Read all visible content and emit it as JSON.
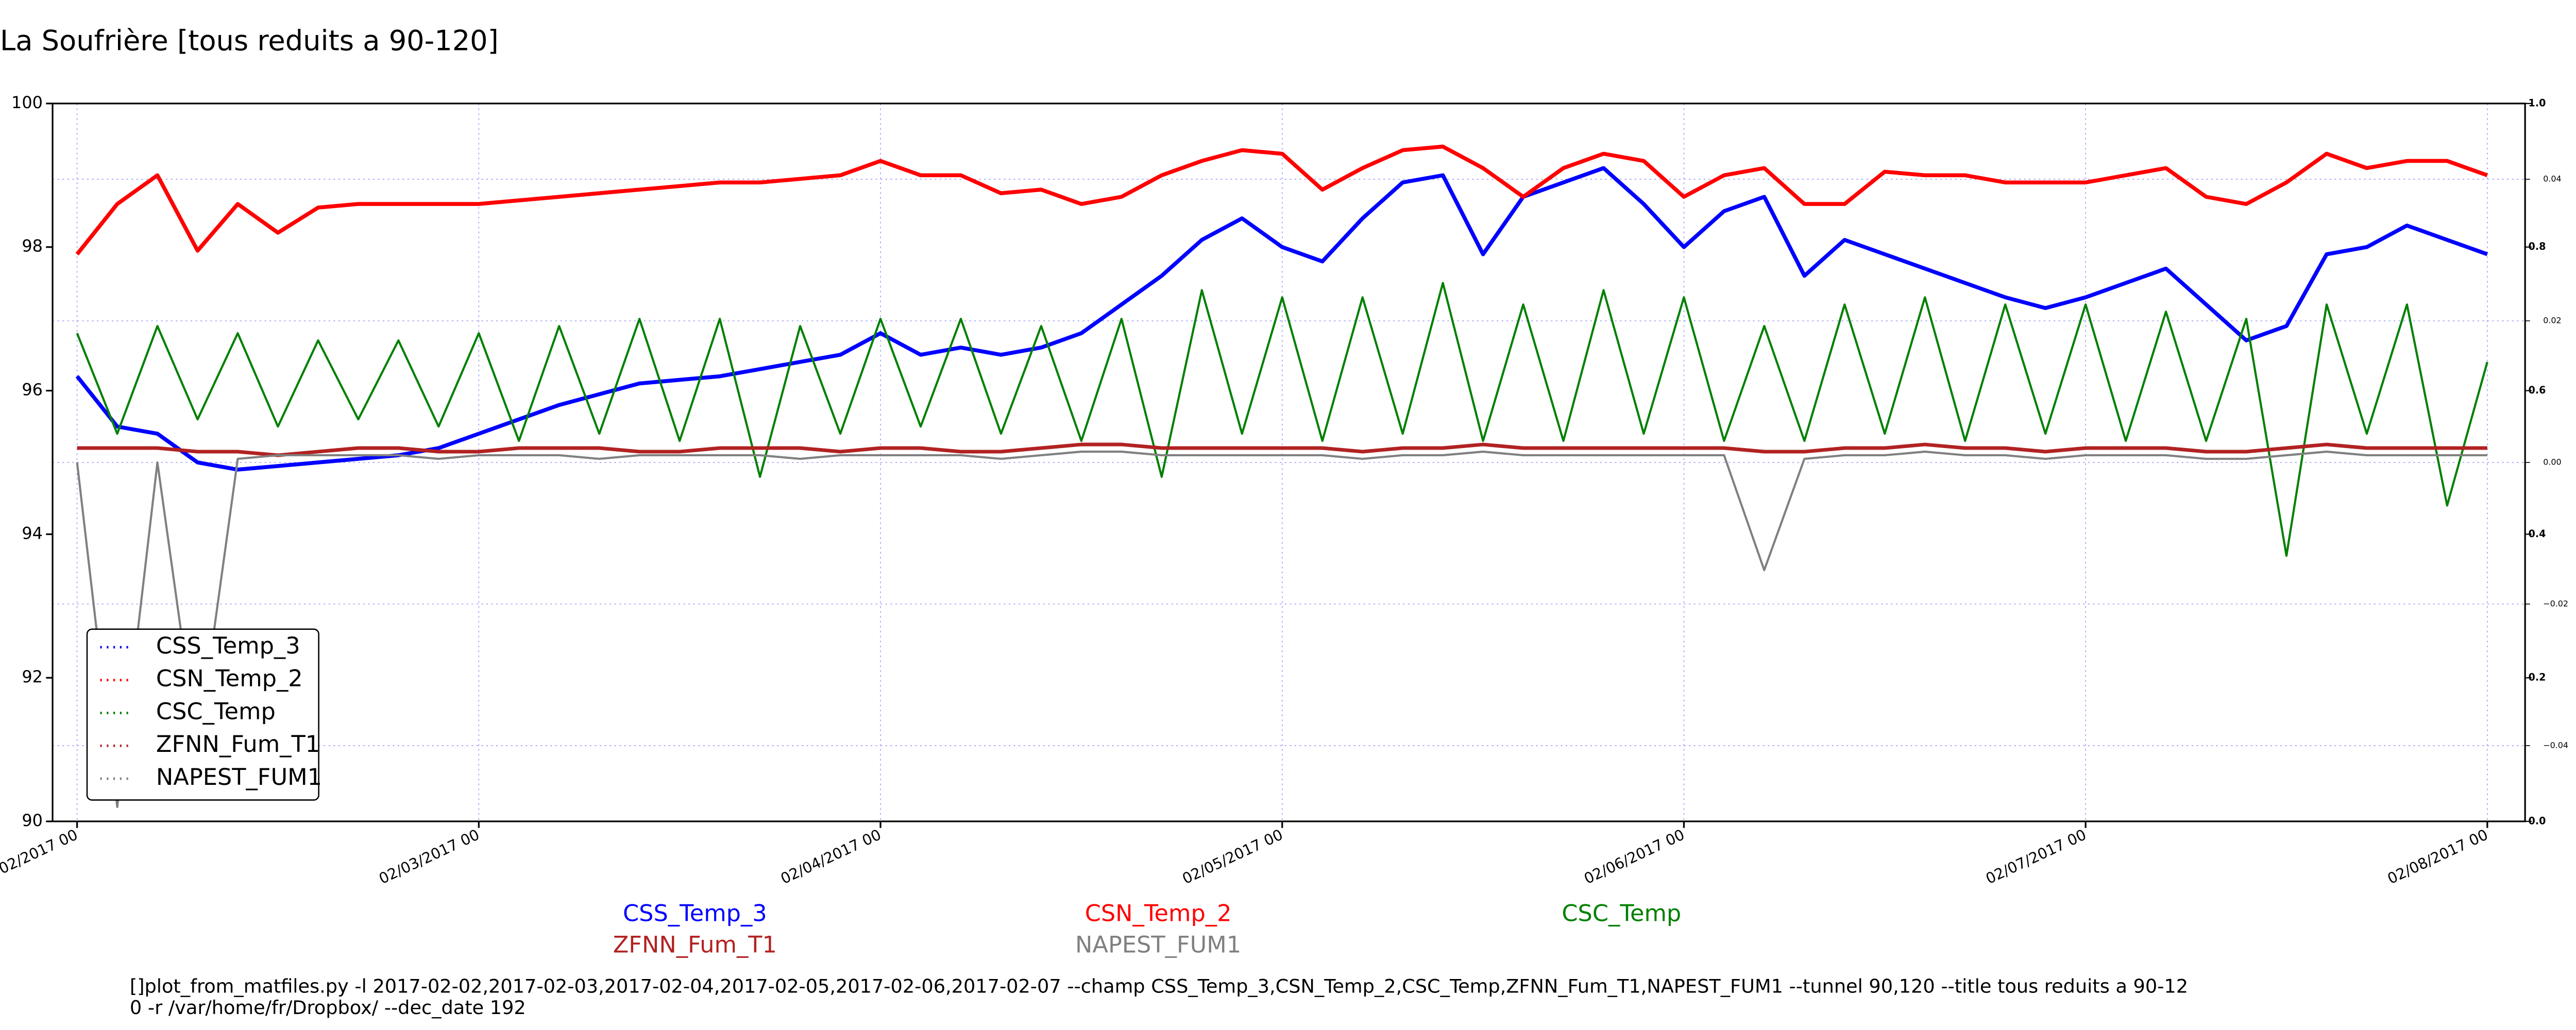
{
  "chart_data": {
    "type": "line",
    "title": "La Soufrière [tous reduits a 90-120]",
    "x": [
      2,
      2.1,
      2.2,
      2.3,
      2.4,
      2.5,
      2.6,
      2.7,
      2.8,
      2.9,
      3,
      3.1,
      3.2,
      3.3,
      3.4,
      3.5,
      3.6,
      3.7,
      3.8,
      3.9,
      4,
      4.1,
      4.2,
      4.3,
      4.4,
      4.5,
      4.6,
      4.7,
      4.8,
      4.9,
      5,
      5.1,
      5.2,
      5.3,
      5.4,
      5.5,
      5.6,
      5.7,
      5.8,
      5.9,
      6,
      6.1,
      6.2,
      6.3,
      6.4,
      6.5,
      6.6,
      6.7,
      6.8,
      6.9,
      7,
      7.1,
      7.2,
      7.3,
      7.4,
      7.5,
      7.6,
      7.7,
      7.8,
      7.9,
      8
    ],
    "xlim": [
      1.939,
      8.094
    ],
    "xticks": [
      {
        "value": 2,
        "label": "02/02/2017 00"
      },
      {
        "value": 3,
        "label": "02/03/2017 00"
      },
      {
        "value": 4,
        "label": "02/04/2017 00"
      },
      {
        "value": 5,
        "label": "02/05/2017 00"
      },
      {
        "value": 6,
        "label": "02/06/2017 00"
      },
      {
        "value": 7,
        "label": "02/07/2017 00"
      },
      {
        "value": 8,
        "label": "02/08/2017 00"
      }
    ],
    "ylim": [
      90,
      100
    ],
    "yticks": [
      90,
      92,
      94,
      96,
      98,
      100
    ],
    "y2lim": [
      0,
      1
    ],
    "y2ticks": [
      {
        "value": 0,
        "label": "0.0"
      },
      0.2,
      0.4,
      0.6,
      0.8,
      {
        "value": 1,
        "label": "1.0"
      }
    ],
    "y3lim": [
      -0.0507,
      0.0507
    ],
    "y3ticks": [
      {
        "value": -0.04,
        "label": "−0.04"
      },
      {
        "value": -0.02,
        "label": "−0.02"
      },
      {
        "value": 0,
        "label": "0.00"
      },
      0.02,
      0.04
    ],
    "grid": true,
    "legend": "lower left",
    "series": [
      {
        "name": "CSS_Temp_3",
        "color": "#0000ff",
        "values": [
          96.2,
          95.5,
          95.4,
          95.0,
          94.9,
          94.95,
          95.0,
          95.05,
          95.1,
          95.2,
          95.4,
          95.6,
          95.8,
          95.95,
          96.1,
          96.15,
          96.2,
          96.3,
          96.4,
          96.5,
          96.8,
          96.5,
          96.6,
          96.5,
          96.6,
          96.8,
          97.2,
          97.6,
          98.1,
          98.4,
          98.0,
          97.8,
          98.4,
          98.9,
          99.0,
          97.9,
          98.7,
          98.9,
          99.1,
          98.6,
          98.0,
          98.5,
          98.7,
          97.6,
          98.1,
          97.9,
          97.7,
          97.5,
          97.3,
          97.15,
          97.3,
          97.5,
          97.7,
          97.2,
          96.7,
          96.9,
          97.9,
          98.0,
          98.3,
          98.1,
          97.9
        ]
      },
      {
        "name": "CSN_Temp_2",
        "color": "#ff0000",
        "values": [
          97.9,
          98.6,
          99.0,
          97.95,
          98.6,
          98.2,
          98.55,
          98.6,
          98.6,
          98.6,
          98.6,
          98.65,
          98.7,
          98.75,
          98.8,
          98.85,
          98.9,
          98.9,
          98.95,
          99.0,
          99.2,
          99.0,
          99.0,
          98.75,
          98.8,
          98.6,
          98.7,
          99.0,
          99.2,
          99.35,
          99.3,
          98.8,
          99.1,
          99.35,
          99.4,
          99.1,
          98.7,
          99.1,
          99.3,
          99.2,
          98.7,
          99.0,
          99.1,
          98.6,
          98.6,
          99.05,
          99.0,
          99.0,
          98.9,
          98.9,
          98.9,
          99.0,
          99.1,
          98.7,
          98.6,
          98.9,
          99.3,
          99.1,
          99.2,
          99.2,
          99.0
        ]
      },
      {
        "name": "CSC_Temp",
        "color": "#008000",
        "values": [
          96.8,
          95.4,
          96.9,
          95.6,
          96.8,
          95.5,
          96.7,
          95.6,
          96.7,
          95.5,
          96.8,
          95.3,
          96.9,
          95.4,
          97.0,
          95.3,
          97.0,
          94.8,
          96.9,
          95.4,
          97.0,
          95.5,
          97.0,
          95.4,
          96.9,
          95.3,
          97.0,
          94.8,
          97.4,
          95.4,
          97.3,
          95.3,
          97.3,
          95.4,
          97.5,
          95.3,
          97.2,
          95.3,
          97.4,
          95.4,
          97.3,
          95.3,
          96.9,
          95.3,
          97.2,
          95.4,
          97.3,
          95.3,
          97.2,
          95.4,
          97.2,
          95.3,
          97.1,
          95.3,
          97.0,
          93.7,
          97.2,
          95.4,
          97.2,
          94.4,
          96.4
        ]
      },
      {
        "name": "ZFNN_Fum_T1",
        "color": "#b22222",
        "values": [
          95.2,
          95.2,
          95.2,
          95.15,
          95.15,
          95.1,
          95.15,
          95.2,
          95.2,
          95.15,
          95.15,
          95.2,
          95.2,
          95.2,
          95.15,
          95.15,
          95.2,
          95.2,
          95.2,
          95.15,
          95.2,
          95.2,
          95.15,
          95.15,
          95.2,
          95.25,
          95.25,
          95.2,
          95.2,
          95.2,
          95.2,
          95.2,
          95.15,
          95.2,
          95.2,
          95.25,
          95.2,
          95.2,
          95.2,
          95.2,
          95.2,
          95.2,
          95.15,
          95.15,
          95.2,
          95.2,
          95.25,
          95.2,
          95.2,
          95.15,
          95.2,
          95.2,
          95.2,
          95.15,
          95.15,
          95.2,
          95.25,
          95.2,
          95.2,
          95.2,
          95.2
        ]
      },
      {
        "name": "NAPEST_FUM1",
        "color": "#808080",
        "values": [
          95.0,
          90.2,
          95.0,
          91.0,
          95.05,
          95.1,
          95.1,
          95.1,
          95.1,
          95.05,
          95.1,
          95.1,
          95.1,
          95.05,
          95.1,
          95.1,
          95.1,
          95.1,
          95.05,
          95.1,
          95.1,
          95.1,
          95.1,
          95.05,
          95.1,
          95.15,
          95.15,
          95.1,
          95.1,
          95.1,
          95.1,
          95.1,
          95.05,
          95.1,
          95.1,
          95.15,
          95.1,
          95.1,
          95.1,
          95.1,
          95.1,
          95.1,
          93.5,
          95.05,
          95.1,
          95.1,
          95.15,
          95.1,
          95.1,
          95.05,
          95.1,
          95.1,
          95.1,
          95.05,
          95.05,
          95.1,
          95.15,
          95.1,
          95.1,
          95.1,
          95.1
        ]
      }
    ],
    "annotation": [
      "[]plot_from_matfiles.py -l 2017-02-02,2017-02-03,2017-02-04,2017-02-05,2017-02-06,2017-02-07 --champ CSS_Temp_3,CSN_Temp_2,CSC_Temp,ZFNN_Fum_T1,NAPEST_FUM1 --tunnel 90,120 --title tous reduits a 90-12",
      "0 -r /var/home/fr/Dropbox/ --dec_date 192"
    ]
  }
}
